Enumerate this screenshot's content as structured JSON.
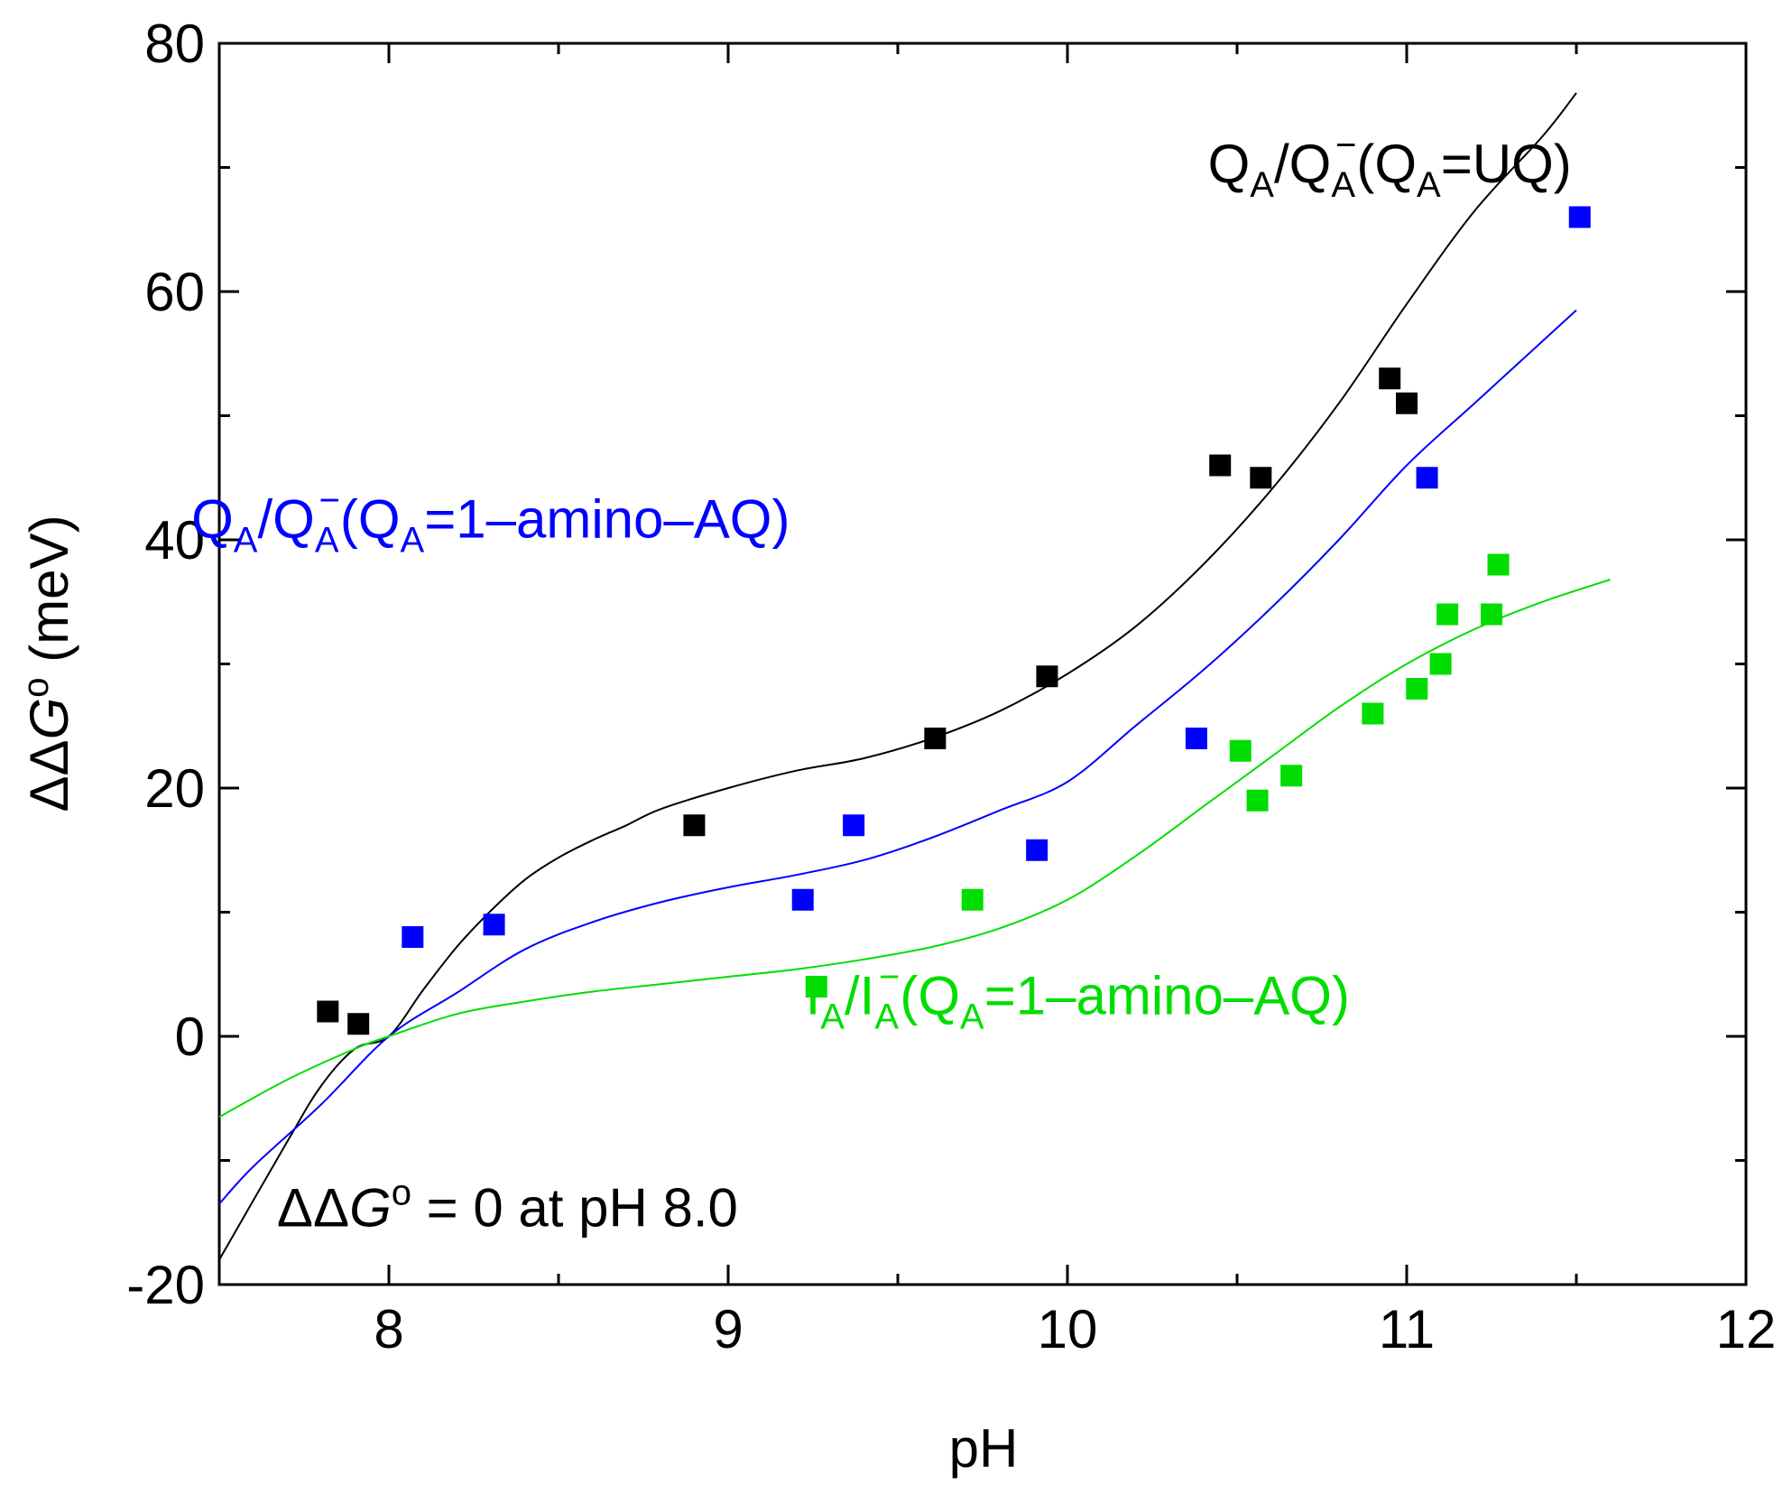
{
  "chart_data": {
    "type": "scatter",
    "title": "",
    "xlabel": "pH",
    "ylabel_prefix": "ΔΔ",
    "ylabel_var": "G",
    "ylabel_sup": "o",
    "ylabel_suffix": " (meV)",
    "xlim": [
      7.5,
      12
    ],
    "ylim": [
      -20,
      80
    ],
    "x_ticks": [
      8,
      9,
      10,
      11,
      12
    ],
    "y_ticks": [
      -20,
      0,
      20,
      40,
      60,
      80
    ],
    "x_tick_labels": [
      "8",
      "9",
      "10",
      "11",
      "12"
    ],
    "y_tick_labels": [
      "-20",
      "0",
      "20",
      "40",
      "60",
      "80"
    ],
    "grid": false,
    "series": [
      {
        "name": "QA/QA− (QA=UQ)",
        "color": "#000000",
        "points": [
          [
            7.82,
            2
          ],
          [
            7.91,
            1
          ],
          [
            8.9,
            17
          ],
          [
            9.61,
            24
          ],
          [
            9.94,
            29
          ],
          [
            10.45,
            46
          ],
          [
            10.57,
            45
          ],
          [
            10.95,
            53
          ],
          [
            11.0,
            51
          ]
        ],
        "curve": [
          [
            7.5,
            -18
          ],
          [
            7.7,
            -8.5
          ],
          [
            7.8,
            -4
          ],
          [
            7.9,
            -1
          ],
          [
            8.0,
            0
          ],
          [
            8.1,
            3.7
          ],
          [
            8.2,
            7.2
          ],
          [
            8.3,
            10.1
          ],
          [
            8.4,
            12.6
          ],
          [
            8.5,
            14.4
          ],
          [
            8.6,
            15.8
          ],
          [
            8.7,
            17.0
          ],
          [
            8.8,
            18.3
          ],
          [
            9.0,
            20.0
          ],
          [
            9.2,
            21.4
          ],
          [
            9.4,
            22.4
          ],
          [
            9.6,
            24.0
          ],
          [
            9.8,
            26.2
          ],
          [
            10.0,
            29.2
          ],
          [
            10.2,
            33.0
          ],
          [
            10.4,
            38.0
          ],
          [
            10.6,
            44.0
          ],
          [
            10.8,
            51.0
          ],
          [
            11.0,
            59.0
          ],
          [
            11.2,
            66.5
          ],
          [
            11.4,
            72.5
          ],
          [
            11.5,
            76.0
          ]
        ]
      },
      {
        "name": "QA/QA− (QA=1–amino–AQ)",
        "color": "#0000ff",
        "points": [
          [
            8.07,
            8
          ],
          [
            8.31,
            9
          ],
          [
            9.22,
            11
          ],
          [
            9.37,
            17
          ],
          [
            9.91,
            15
          ],
          [
            10.38,
            24
          ],
          [
            11.06,
            45
          ],
          [
            11.51,
            66
          ]
        ],
        "curve": [
          [
            7.5,
            -13.5
          ],
          [
            7.6,
            -10.5
          ],
          [
            7.8,
            -5.5
          ],
          [
            8.0,
            0
          ],
          [
            8.2,
            3.5
          ],
          [
            8.4,
            7.0
          ],
          [
            8.6,
            9.2
          ],
          [
            8.8,
            10.8
          ],
          [
            9.0,
            12.0
          ],
          [
            9.2,
            13.0
          ],
          [
            9.4,
            14.2
          ],
          [
            9.6,
            16.0
          ],
          [
            9.8,
            18.2
          ],
          [
            10.0,
            20.5
          ],
          [
            10.2,
            25.0
          ],
          [
            10.4,
            29.5
          ],
          [
            10.6,
            34.5
          ],
          [
            10.8,
            40.0
          ],
          [
            11.0,
            46.0
          ],
          [
            11.2,
            51.0
          ],
          [
            11.4,
            56.0
          ],
          [
            11.5,
            58.5
          ]
        ]
      },
      {
        "name": "IA/IA− (QA=1–amino–AQ)",
        "color": "#00dd00",
        "points": [
          [
            9.26,
            4
          ],
          [
            9.72,
            11
          ],
          [
            10.51,
            23
          ],
          [
            10.56,
            19
          ],
          [
            10.66,
            21
          ],
          [
            10.9,
            26
          ],
          [
            11.03,
            28
          ],
          [
            11.1,
            30
          ],
          [
            11.12,
            34
          ],
          [
            11.25,
            34
          ],
          [
            11.27,
            38
          ]
        ],
        "curve": [
          [
            7.5,
            -6.5
          ],
          [
            7.7,
            -3.5
          ],
          [
            7.9,
            -1.0
          ],
          [
            8.0,
            0
          ],
          [
            8.2,
            1.8
          ],
          [
            8.4,
            2.8
          ],
          [
            8.6,
            3.6
          ],
          [
            8.8,
            4.2
          ],
          [
            9.0,
            4.8
          ],
          [
            9.2,
            5.4
          ],
          [
            9.4,
            6.2
          ],
          [
            9.6,
            7.2
          ],
          [
            9.8,
            8.7
          ],
          [
            10.0,
            11.0
          ],
          [
            10.2,
            14.5
          ],
          [
            10.4,
            18.5
          ],
          [
            10.6,
            22.5
          ],
          [
            10.8,
            26.5
          ],
          [
            11.0,
            30.0
          ],
          [
            11.2,
            32.8
          ],
          [
            11.4,
            35.0
          ],
          [
            11.6,
            36.8
          ]
        ]
      }
    ],
    "annotations": [
      {
        "id": "uq",
        "color": "#000000",
        "x": 10.95,
        "y": 68.8,
        "parts": [
          "Q",
          "A",
          "/Q",
          "A",
          "−",
          "(Q",
          "A",
          "=UQ)"
        ]
      },
      {
        "id": "aq",
        "color": "#0000ff",
        "x": 8.3,
        "y": 40.2,
        "parts": [
          "Q",
          "A",
          "/Q",
          "A",
          "−",
          "(Q",
          "A",
          "=1–amino–AQ)"
        ]
      },
      {
        "id": "ia",
        "color": "#00dd00",
        "x": 10.03,
        "y": 1.8,
        "parts": [
          "I",
          "A",
          "/I",
          "A",
          "−",
          "(Q",
          "A",
          "=1–amino–AQ)"
        ]
      }
    ],
    "note": {
      "prefix": "ΔΔ",
      "var": "G",
      "sup": "o",
      "suffix": " = 0 at pH 8.0",
      "x": 7.67,
      "y": -15.3
    }
  }
}
